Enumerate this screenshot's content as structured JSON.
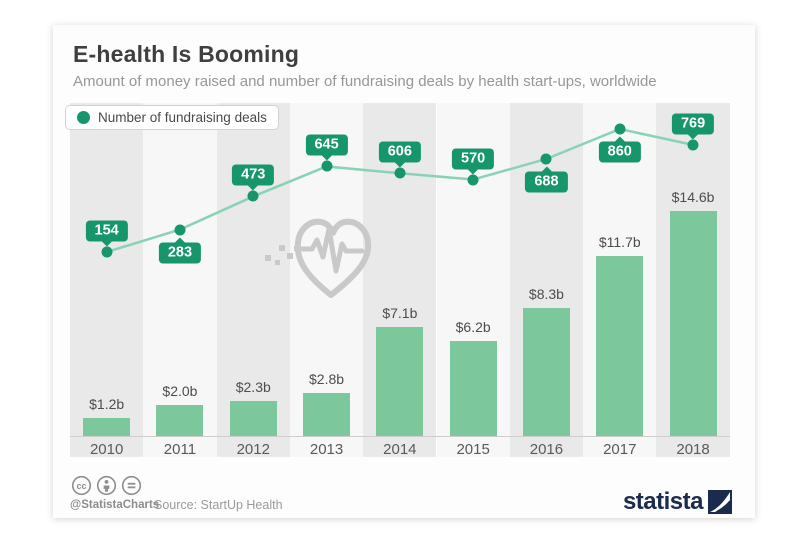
{
  "header": {
    "title": "E-health Is Booming",
    "subtitle": "Amount of money raised and number of fundraising deals by health start-ups, worldwide"
  },
  "legend": {
    "label": "Number of fundraising deals"
  },
  "chart_data": {
    "type": "bar+line",
    "title": "E-health Is Booming",
    "categories": [
      "2010",
      "2011",
      "2012",
      "2013",
      "2014",
      "2015",
      "2016",
      "2017",
      "2018"
    ],
    "series": [
      {
        "name": "Amount of money raised",
        "type": "bar",
        "unit": "USD billions",
        "values": [
          1.2,
          2.0,
          2.3,
          2.8,
          7.1,
          6.2,
          8.3,
          11.7,
          14.6
        ],
        "labels": [
          "$1.2b",
          "$2.0b",
          "$2.3b",
          "$2.8b",
          "$7.1b",
          "$6.2b",
          "$8.3b",
          "$11.7b",
          "$14.6b"
        ]
      },
      {
        "name": "Number of fundraising deals",
        "type": "line",
        "values": [
          154,
          283,
          473,
          645,
          606,
          570,
          688,
          860,
          769
        ],
        "label_positions": [
          "above",
          "below",
          "above",
          "above",
          "above",
          "above",
          "below",
          "below",
          "above"
        ]
      }
    ],
    "legend_position": "top-left",
    "grid": "alternating vertical column stripes",
    "x_axis_baseline": true
  },
  "footer": {
    "license_icons": [
      "cc-icon",
      "attribution-icon",
      "nd-icon"
    ],
    "handle": "@StatistaCharts",
    "source": "Source: StartUp Health",
    "logo_text": "statista"
  },
  "colors": {
    "accent_green": "#17966c",
    "line_green": "#8ad2b4",
    "bar_green": "#7cc79b",
    "stripe_gray": "#e9e9e9",
    "stripe_light": "#f7f7f7",
    "title_text": "#3f3f3f",
    "subtitle_text": "#979797",
    "watermark_gray": "#c9c9c9",
    "logo_navy": "#1b2b4d"
  }
}
